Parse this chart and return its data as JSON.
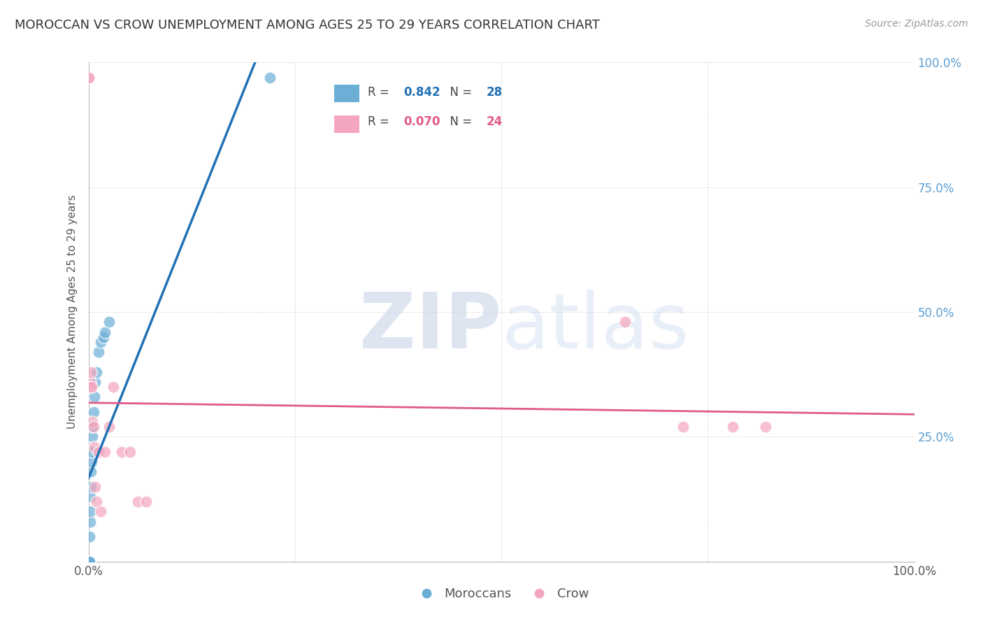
{
  "title": "MOROCCAN VS CROW UNEMPLOYMENT AMONG AGES 25 TO 29 YEARS CORRELATION CHART",
  "source": "Source: ZipAtlas.com",
  "ylabel": "Unemployment Among Ages 25 to 29 years",
  "blue_label": "Moroccans",
  "pink_label": "Crow",
  "blue_R": 0.842,
  "blue_N": 28,
  "pink_R": 0.07,
  "pink_N": 24,
  "blue_color": "#6baed6",
  "pink_color": "#f4a6be",
  "blue_line_color": "#2171b5",
  "pink_line_color": "#e05a8a",
  "xlim": [
    0,
    1.0
  ],
  "ylim": [
    0,
    1.0
  ],
  "moroccan_x": [
    0.0,
    0.0,
    0.0,
    0.0,
    0.0,
    0.001,
    0.001,
    0.001,
    0.001,
    0.002,
    0.002,
    0.002,
    0.003,
    0.003,
    0.004,
    0.004,
    0.005,
    0.005,
    0.006,
    0.007,
    0.008,
    0.01,
    0.012,
    0.015,
    0.018,
    0.02,
    0.025,
    0.22
  ],
  "moroccan_y": [
    0.0,
    0.0,
    0.0,
    0.0,
    0.0,
    0.0,
    0.0,
    0.0,
    0.05,
    0.08,
    0.1,
    0.13,
    0.15,
    0.18,
    0.2,
    0.22,
    0.25,
    0.27,
    0.3,
    0.33,
    0.36,
    0.38,
    0.42,
    0.44,
    0.45,
    0.46,
    0.48,
    0.97
  ],
  "crow_x": [
    0.0,
    0.0,
    0.002,
    0.003,
    0.003,
    0.004,
    0.005,
    0.006,
    0.007,
    0.008,
    0.01,
    0.012,
    0.015,
    0.02,
    0.025,
    0.03,
    0.04,
    0.05,
    0.06,
    0.07,
    0.65,
    0.72,
    0.78,
    0.82
  ],
  "crow_y": [
    0.97,
    0.97,
    0.36,
    0.35,
    0.38,
    0.35,
    0.28,
    0.27,
    0.23,
    0.15,
    0.12,
    0.22,
    0.1,
    0.22,
    0.27,
    0.35,
    0.22,
    0.22,
    0.12,
    0.12,
    0.48,
    0.27,
    0.27,
    0.27
  ],
  "background_color": "#ffffff",
  "grid_color": "#dddddd"
}
